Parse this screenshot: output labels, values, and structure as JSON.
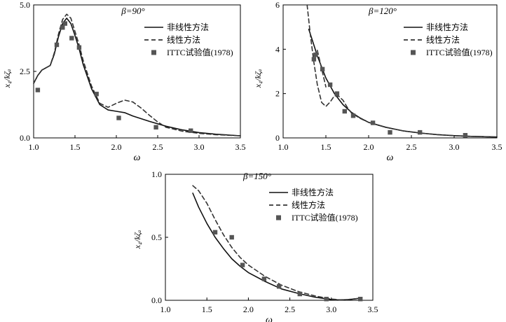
{
  "chart_data": [
    {
      "type": "line",
      "title": "β=90°",
      "xlabel": "ω",
      "ylabel": "x₄/kζₐ",
      "xlim": [
        1.0,
        3.5
      ],
      "ylim": [
        0.0,
        5.0
      ],
      "xticks": [
        1.0,
        1.5,
        2.0,
        2.5,
        3.0,
        3.5
      ],
      "xtick_labels": [
        "1.0",
        "1.5",
        "2.0",
        "2.5",
        "3.0",
        "3.5"
      ],
      "yticks": [
        0.0,
        2.5,
        5.0
      ],
      "ytick_labels": [
        "0.0",
        "2.5",
        "5.0"
      ],
      "legend_position": "top-right",
      "grid": false,
      "series": [
        {
          "name": "非线性方法",
          "style": "solid",
          "x": [
            1.0,
            1.05,
            1.1,
            1.2,
            1.25,
            1.3,
            1.35,
            1.4,
            1.45,
            1.5,
            1.55,
            1.6,
            1.7,
            1.8,
            1.9,
            2.0,
            2.1,
            2.2,
            2.4,
            2.6,
            2.8,
            3.0,
            3.2,
            3.5
          ],
          "y": [
            2.05,
            2.35,
            2.55,
            2.72,
            3.15,
            3.8,
            4.3,
            4.5,
            4.3,
            3.85,
            3.35,
            2.75,
            1.85,
            1.25,
            1.05,
            1.0,
            0.95,
            0.82,
            0.62,
            0.44,
            0.3,
            0.2,
            0.14,
            0.08
          ]
        },
        {
          "name": "线性方法",
          "style": "dashed",
          "x": [
            1.0,
            1.05,
            1.1,
            1.2,
            1.25,
            1.3,
            1.35,
            1.4,
            1.45,
            1.5,
            1.55,
            1.6,
            1.7,
            1.8,
            1.9,
            2.0,
            2.1,
            2.2,
            2.3,
            2.4,
            2.5,
            2.6,
            2.8,
            3.0,
            3.2,
            3.5
          ],
          "y": [
            2.05,
            2.35,
            2.55,
            2.72,
            3.2,
            3.9,
            4.45,
            4.65,
            4.5,
            4.0,
            3.5,
            2.9,
            1.95,
            1.3,
            1.15,
            1.3,
            1.42,
            1.35,
            1.12,
            0.85,
            0.6,
            0.4,
            0.25,
            0.17,
            0.12,
            0.08
          ]
        }
      ],
      "points": {
        "name": "ITTC试验值(1978)",
        "x": [
          1.05,
          1.28,
          1.35,
          1.38,
          1.46,
          1.55,
          1.76,
          2.03,
          2.48,
          2.9
        ],
        "y": [
          1.8,
          3.5,
          4.15,
          4.3,
          3.75,
          3.4,
          1.65,
          0.75,
          0.4,
          0.27
        ]
      }
    },
    {
      "type": "line",
      "title": "β=120°",
      "xlabel": "ω",
      "ylabel": "x₄/kζₐ",
      "xlim": [
        1.0,
        3.5
      ],
      "ylim": [
        0,
        6
      ],
      "xticks": [
        1.0,
        1.5,
        2.0,
        2.5,
        3.0,
        3.5
      ],
      "xtick_labels": [
        "1.0",
        "1.5",
        "2.0",
        "2.5",
        "3.0",
        "3.5"
      ],
      "yticks": [
        0,
        2,
        4,
        6
      ],
      "ytick_labels": [
        "0",
        "2",
        "4",
        "6"
      ],
      "legend_position": "top-right",
      "grid": false,
      "series": [
        {
          "name": "非线性方法",
          "style": "solid",
          "x": [
            1.3,
            1.35,
            1.4,
            1.5,
            1.6,
            1.7,
            1.8,
            1.9,
            2.0,
            2.2,
            2.4,
            2.6,
            2.8,
            3.0,
            3.2,
            3.5
          ],
          "y": [
            4.9,
            4.3,
            3.7,
            2.7,
            2.0,
            1.5,
            1.15,
            0.9,
            0.7,
            0.48,
            0.32,
            0.22,
            0.15,
            0.1,
            0.07,
            0.04
          ]
        },
        {
          "name": "线性方法",
          "style": "dashed",
          "x": [
            1.28,
            1.32,
            1.36,
            1.4,
            1.45,
            1.5,
            1.55,
            1.6,
            1.65,
            1.7,
            1.75,
            1.8,
            1.9,
            2.0,
            2.2,
            2.4,
            2.6,
            2.8,
            3.0,
            3.2,
            3.5
          ],
          "y": [
            6.0,
            4.6,
            3.4,
            2.4,
            1.6,
            1.42,
            1.62,
            1.9,
            1.88,
            1.7,
            1.38,
            1.12,
            0.88,
            0.7,
            0.48,
            0.32,
            0.22,
            0.15,
            0.1,
            0.07,
            0.04
          ]
        },
        {
          "name": "",
          "style": "dashed",
          "x": [
            1.4,
            1.5
          ],
          "y": [
            3.95,
            2.3
          ]
        }
      ],
      "points": {
        "name": "ITTC试验值(1978)",
        "x": [
          1.36,
          1.38,
          1.46,
          1.55,
          1.63,
          1.72,
          1.82,
          2.05,
          2.25,
          2.6,
          3.13
        ],
        "y": [
          3.55,
          3.75,
          3.1,
          2.4,
          2.0,
          1.2,
          1.0,
          0.68,
          0.25,
          0.25,
          0.12
        ]
      }
    },
    {
      "type": "line",
      "title": "β=150°",
      "xlabel": "ω",
      "ylabel": "x₄/kζₐ",
      "xlim": [
        1.0,
        3.5
      ],
      "ylim": [
        0.0,
        1.0
      ],
      "xticks": [
        1.0,
        1.5,
        2.0,
        2.5,
        3.0,
        3.5
      ],
      "xtick_labels": [
        "1.0",
        "1.5",
        "2.0",
        "2.5",
        "3.0",
        "3.5"
      ],
      "yticks": [
        0.0,
        0.5,
        1.0
      ],
      "ytick_labels": [
        "0.0",
        "0.5",
        "1.0"
      ],
      "legend_position": "top-right",
      "grid": false,
      "series": [
        {
          "name": "非线性方法",
          "style": "solid",
          "x": [
            1.33,
            1.4,
            1.5,
            1.6,
            1.7,
            1.8,
            1.9,
            2.0,
            2.2,
            2.4,
            2.6,
            2.8,
            3.0,
            3.1,
            3.2,
            3.3,
            3.35
          ],
          "y": [
            0.85,
            0.74,
            0.61,
            0.5,
            0.41,
            0.33,
            0.27,
            0.22,
            0.15,
            0.09,
            0.055,
            0.025,
            0.006,
            0.003,
            0.005,
            0.012,
            0.018
          ]
        },
        {
          "name": "线性方法",
          "style": "dashed",
          "x": [
            1.33,
            1.4,
            1.5,
            1.6,
            1.7,
            1.8,
            1.9,
            2.0,
            2.2,
            2.4,
            2.6,
            2.8,
            3.0,
            3.1,
            3.2,
            3.3,
            3.35
          ],
          "y": [
            0.91,
            0.87,
            0.77,
            0.64,
            0.52,
            0.42,
            0.34,
            0.28,
            0.19,
            0.12,
            0.07,
            0.035,
            0.01,
            0.004,
            0.006,
            0.013,
            0.018
          ]
        }
      ],
      "points": {
        "name": "ITTC试验值(1978)",
        "x": [
          1.6,
          1.8,
          1.93,
          2.19,
          2.37,
          2.62,
          2.94,
          3.35
        ],
        "y": [
          0.54,
          0.5,
          0.28,
          0.17,
          0.11,
          0.05,
          0.01,
          0.01
        ]
      }
    }
  ]
}
